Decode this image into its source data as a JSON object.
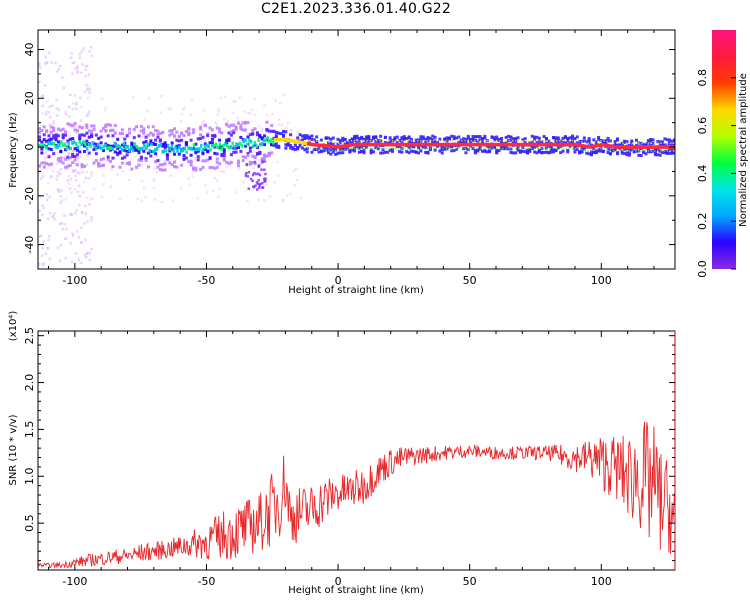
{
  "chart_data": [
    {
      "type": "heatmap",
      "title": "C2E1.2023.336.01.40.G22",
      "xlabel": "Height of straight line (km)",
      "ylabel": "Frequency (Hz)",
      "xlim": [
        -114,
        128
      ],
      "ylim": [
        -50,
        48
      ],
      "xticks": [
        -100,
        -50,
        0,
        50,
        100
      ],
      "yticks": [
        40,
        20,
        0,
        -20,
        -40
      ],
      "colorbar": {
        "label": "Normalized spectral amplitude",
        "range": [
          0,
          1
        ],
        "ticks": [
          "0.0",
          "0.2",
          "0.4",
          "0.6",
          "0.8"
        ],
        "tick_values": [
          0,
          0.2,
          0.4,
          0.6,
          0.8
        ],
        "colormap": [
          "#8a2be2",
          "#2b00ff",
          "#00a8ff",
          "#00e6e6",
          "#00ff3c",
          "#b4ff00",
          "#ffd800",
          "#ff3c00",
          "#ff1a3c",
          "#ff1480"
        ]
      },
      "trace": {
        "x": [
          -114,
          -100,
          -80,
          -60,
          -40,
          -30,
          -25,
          -20,
          -15,
          -10,
          0,
          5,
          20,
          50,
          80,
          90,
          95,
          100,
          105,
          110,
          115,
          120,
          128
        ],
        "y": [
          0,
          1,
          0,
          -1,
          1,
          2,
          3,
          3,
          2,
          1,
          0,
          1,
          1,
          1,
          1,
          1,
          0,
          1,
          0,
          0,
          0,
          0,
          0
        ]
      },
      "grid": false,
      "legend": "none"
    },
    {
      "type": "line",
      "xlabel": "Height of straight line (km)",
      "ylabel": "SNR (10 * v/v)",
      "y_multiplier": "(x10⁴)",
      "xlim": [
        -114,
        128
      ],
      "ylim": [
        0,
        2.55
      ],
      "xticks": [
        -100,
        -50,
        0,
        50,
        100
      ],
      "yticks": [
        0.5,
        1.0,
        1.5,
        2.0,
        2.5
      ],
      "ytick_labels": [
        "0.5",
        "1.0",
        "1.5",
        "2.0",
        "2.5"
      ],
      "series": [
        {
          "color": "#e8292c",
          "x": [
            -114,
            -105,
            -100,
            -95,
            -90,
            -85,
            -80,
            -75,
            -70,
            -65,
            -60,
            -55,
            -50,
            -45,
            -40,
            -35,
            -30,
            -25,
            -22,
            -20,
            -18,
            -15,
            -10,
            -5,
            0,
            5,
            10,
            15,
            20,
            25,
            30,
            40,
            50,
            60,
            70,
            80,
            85,
            90,
            95,
            100,
            105,
            110,
            115,
            118,
            120,
            122,
            125,
            128
          ],
          "y": [
            0.05,
            0.05,
            0.08,
            0.1,
            0.12,
            0.14,
            0.15,
            0.18,
            0.2,
            0.22,
            0.25,
            0.28,
            0.3,
            0.36,
            0.4,
            0.45,
            0.5,
            0.65,
            0.8,
            0.95,
            0.55,
            0.6,
            0.65,
            0.75,
            0.82,
            0.85,
            0.9,
            1.05,
            1.15,
            1.2,
            1.22,
            1.25,
            1.27,
            1.25,
            1.25,
            1.25,
            1.22,
            1.2,
            1.2,
            1.15,
            1.1,
            1.0,
            1.0,
            0.9,
            0.95,
            0.75,
            0.7,
            0.5
          ],
          "noise": [
            0.02,
            0.03,
            0.05,
            0.07,
            0.07,
            0.08,
            0.08,
            0.1,
            0.1,
            0.1,
            0.12,
            0.15,
            0.2,
            0.25,
            0.3,
            0.3,
            0.32,
            0.4,
            0.45,
            0.35,
            0.3,
            0.3,
            0.28,
            0.25,
            0.2,
            0.2,
            0.2,
            0.18,
            0.15,
            0.12,
            0.1,
            0.08,
            0.07,
            0.07,
            0.07,
            0.08,
            0.12,
            0.15,
            0.2,
            0.3,
            0.35,
            0.45,
            0.6,
            0.7,
            0.6,
            0.6,
            0.5,
            0.4
          ]
        }
      ],
      "grid": false,
      "legend": "none"
    }
  ]
}
